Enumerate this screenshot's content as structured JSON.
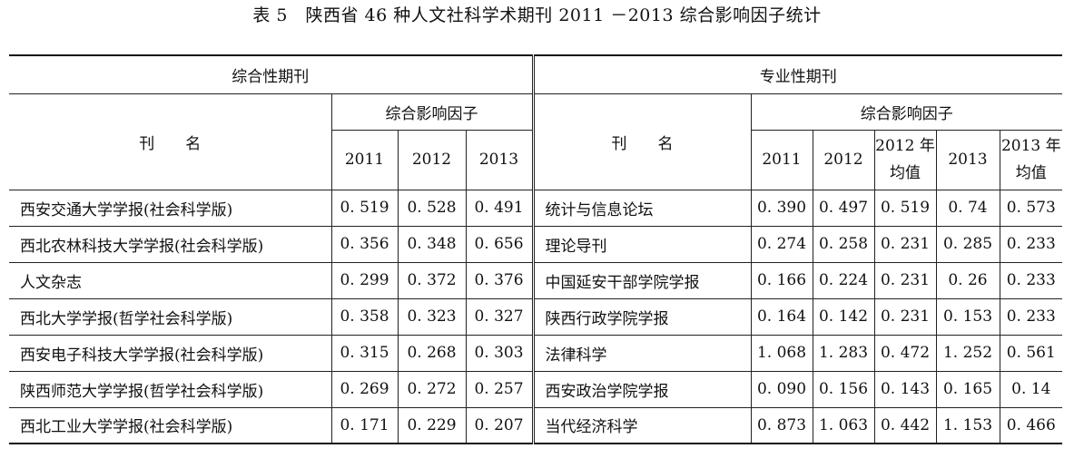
{
  "caption": "表 5　陕西省 46 种人文社科学术期刊 2011 －2013 综合影响因子统计",
  "left_group": {
    "title": "综合性期刊",
    "name_header": "刊　　名",
    "factor_header": "综合影响因子",
    "years": [
      "2011",
      "2012",
      "2013"
    ]
  },
  "right_group": {
    "title": "专业性期刊",
    "name_header": "刊　　名",
    "factor_header": "综合影响因子",
    "cols": [
      "2011",
      "2012",
      "2012 年均值",
      "2013",
      "2013 年均值"
    ]
  },
  "left_rows": [
    {
      "name": "西安交通大学学报(社会科学版)",
      "v2011": "0. 519",
      "v2012": "0. 528",
      "v2013": "0. 491"
    },
    {
      "name": "西北农林科技大学学报(社会科学版)",
      "v2011": "0. 356",
      "v2012": "0. 348",
      "v2013": "0. 656"
    },
    {
      "name": "人文杂志",
      "v2011": "0. 299",
      "v2012": "0. 372",
      "v2013": "0. 376"
    },
    {
      "name": "西北大学学报(哲学社会科学版)",
      "v2011": "0. 358",
      "v2012": "0. 323",
      "v2013": "0. 327"
    },
    {
      "name": "西安电子科技大学学报(社会科学版)",
      "v2011": "0. 315",
      "v2012": "0. 268",
      "v2013": "0. 303"
    },
    {
      "name": "陕西师范大学学报(哲学社会科学版)",
      "v2011": "0. 269",
      "v2012": "0. 272",
      "v2013": "0. 257"
    },
    {
      "name": "西北工业大学学报(社会科学版)",
      "v2011": "0. 171",
      "v2012": "0. 229",
      "v2013": "0. 207"
    }
  ],
  "right_rows": [
    {
      "name": "统计与信息论坛",
      "v2011": "0. 390",
      "v2012": "0. 497",
      "avg2012": "0. 519",
      "v2013": "0. 74",
      "avg2013": "0. 573"
    },
    {
      "name": "理论导刊",
      "v2011": "0. 274",
      "v2012": "0. 258",
      "avg2012": "0. 231",
      "v2013": "0. 285",
      "avg2013": "0. 233"
    },
    {
      "name": "中国延安干部学院学报",
      "v2011": "0. 166",
      "v2012": "0. 224",
      "avg2012": "0. 231",
      "v2013": "0. 26",
      "avg2013": "0. 233"
    },
    {
      "name": "陕西行政学院学报",
      "v2011": "0. 164",
      "v2012": "0. 142",
      "avg2012": "0. 231",
      "v2013": "0. 153",
      "avg2013": "0. 233"
    },
    {
      "name": "法律科学",
      "v2011": "1. 068",
      "v2012": "1. 283",
      "avg2012": "0. 472",
      "v2013": "1. 252",
      "avg2013": "0. 561"
    },
    {
      "name": "西安政治学院学报",
      "v2011": "0. 090",
      "v2012": "0. 156",
      "avg2012": "0. 143",
      "v2013": "0. 165",
      "avg2013": "0. 14"
    },
    {
      "name": "当代经济科学",
      "v2011": "0. 873",
      "v2012": "1. 063",
      "avg2012": "0. 442",
      "v2013": "1. 153",
      "avg2013": "0. 466"
    }
  ]
}
